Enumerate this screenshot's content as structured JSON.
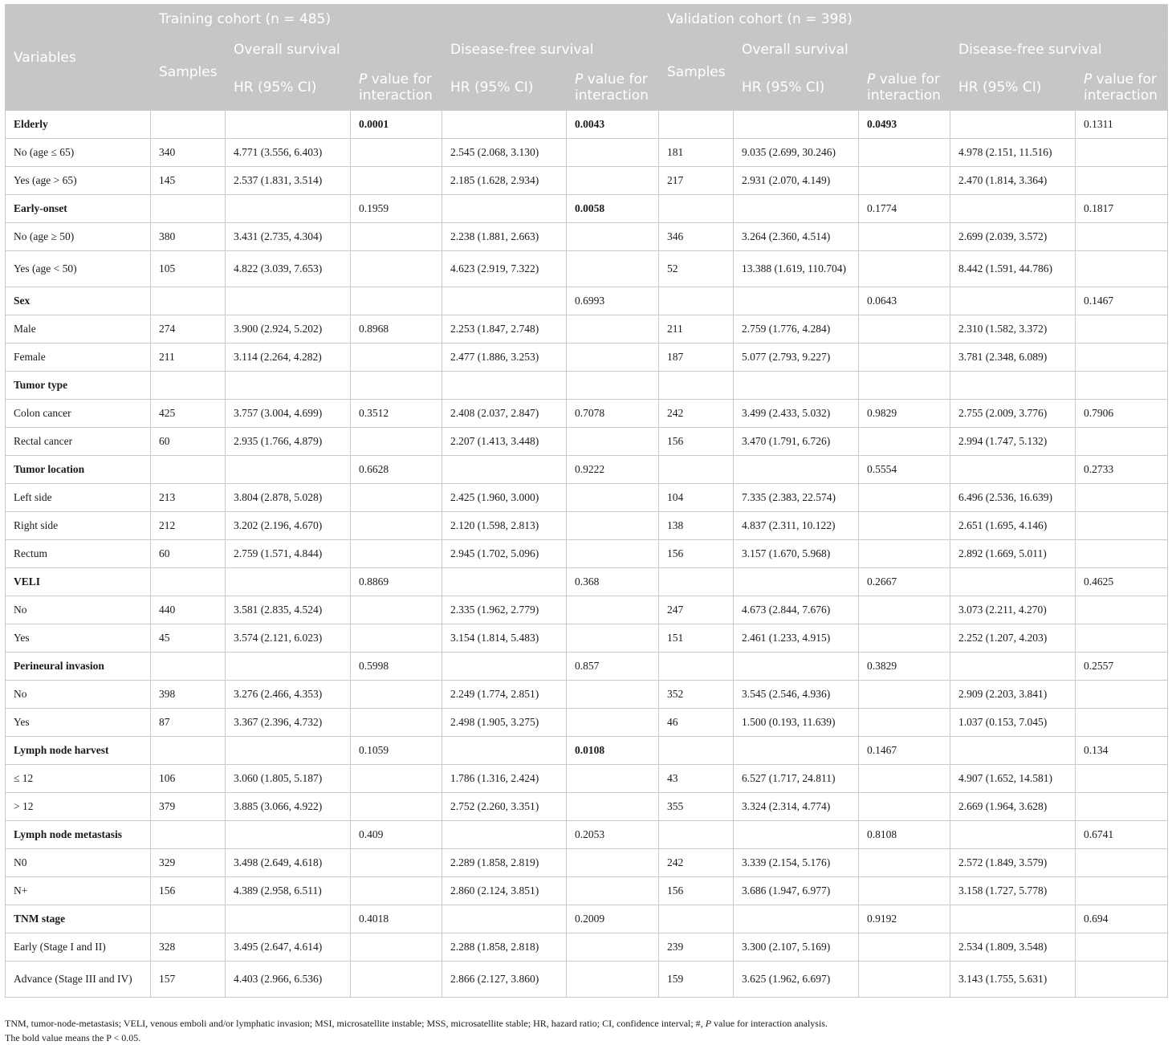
{
  "header": {
    "variables": "Variables",
    "training_cohort": "Training cohort (n = 485)",
    "validation_cohort": "Validation cohort (n = 398)",
    "samples": "Samples",
    "overall_survival": "Overall survival",
    "disease_free_survival": "Disease-free survival",
    "hr": "HR (95% CI)",
    "p_italic": "P",
    "p_rest": " value for interaction"
  },
  "rows": [
    {
      "cells": [
        "Elderly",
        "",
        "",
        "0.0001",
        "",
        "0.0043",
        "",
        "",
        "0.0493",
        "",
        "0.1311"
      ],
      "group": true,
      "bold": [
        3,
        5,
        8
      ]
    },
    {
      "cells": [
        "No (age ≤ 65)",
        "340",
        "4.771 (3.556, 6.403)",
        "",
        "2.545 (2.068, 3.130)",
        "",
        "181",
        "9.035 (2.699, 30.246)",
        "",
        "4.978 (2.151, 11.516)",
        ""
      ]
    },
    {
      "cells": [
        "Yes (age > 65)",
        "145",
        "2.537 (1.831, 3.514)",
        "",
        "2.185 (1.628, 2.934)",
        "",
        "217",
        "2.931 (2.070, 4.149)",
        "",
        "2.470 (1.814, 3.364)",
        ""
      ]
    },
    {
      "cells": [
        "Early-onset",
        "",
        "",
        "0.1959",
        "",
        "0.0058",
        "",
        "",
        "0.1774",
        "",
        "0.1817"
      ],
      "group": true,
      "bold": [
        5
      ]
    },
    {
      "cells": [
        "No (age ≥ 50)",
        "380",
        "3.431 (2.735, 4.304)",
        "",
        "2.238 (1.881, 2.663)",
        "",
        "346",
        "3.264 (2.360, 4.514)",
        "",
        "2.699 (2.039, 3.572)",
        ""
      ]
    },
    {
      "cells": [
        "Yes (age < 50)",
        "105",
        "4.822 (3.039, 7.653)",
        "",
        "4.623 (2.919, 7.322)",
        "",
        "52",
        "13.388 (1.619, 110.704)",
        "",
        "8.442 (1.591, 44.786)",
        ""
      ],
      "tall": true
    },
    {
      "cells": [
        "Sex",
        "",
        "",
        "",
        "",
        "0.6993",
        "",
        "",
        "0.0643",
        "",
        "0.1467"
      ],
      "group": true,
      "bold": []
    },
    {
      "cells": [
        "Male",
        "274",
        "3.900 (2.924, 5.202)",
        "0.8968",
        "2.253 (1.847, 2.748)",
        "",
        "211",
        "2.759 (1.776, 4.284)",
        "",
        "2.310 (1.582, 3.372)",
        ""
      ]
    },
    {
      "cells": [
        "Female",
        "211",
        "3.114 (2.264, 4.282)",
        "",
        "2.477 (1.886, 3.253)",
        "",
        "187",
        "5.077 (2.793, 9.227)",
        "",
        "3.781 (2.348, 6.089)",
        ""
      ]
    },
    {
      "cells": [
        "Tumor type",
        "",
        "",
        "",
        "",
        "",
        "",
        "",
        "",
        "",
        ""
      ],
      "group": true,
      "bold": []
    },
    {
      "cells": [
        "Colon cancer",
        "425",
        "3.757 (3.004, 4.699)",
        "0.3512",
        "2.408 (2.037, 2.847)",
        "0.7078",
        "242",
        "3.499 (2.433, 5.032)",
        "0.9829",
        "2.755 (2.009, 3.776)",
        "0.7906"
      ]
    },
    {
      "cells": [
        "Rectal cancer",
        "60",
        "2.935 (1.766, 4.879)",
        "",
        "2.207 (1.413, 3.448)",
        "",
        "156",
        "3.470 (1.791, 6.726)",
        "",
        "2.994 (1.747, 5.132)",
        ""
      ]
    },
    {
      "cells": [
        "Tumor location",
        "",
        "",
        "0.6628",
        "",
        "0.9222",
        "",
        "",
        "0.5554",
        "",
        "0.2733"
      ],
      "group": true,
      "bold": []
    },
    {
      "cells": [
        "Left side",
        "213",
        "3.804 (2.878, 5.028)",
        "",
        "2.425 (1.960, 3.000)",
        "",
        "104",
        "7.335 (2.383, 22.574)",
        "",
        "6.496 (2.536, 16.639)",
        ""
      ]
    },
    {
      "cells": [
        "Right side",
        "212",
        "3.202 (2.196, 4.670)",
        "",
        "2.120 (1.598, 2.813)",
        "",
        "138",
        "4.837 (2.311, 10.122)",
        "",
        "2.651 (1.695, 4.146)",
        ""
      ]
    },
    {
      "cells": [
        "Rectum",
        "60",
        "2.759 (1.571, 4.844)",
        "",
        "2.945 (1.702, 5.096)",
        "",
        "156",
        "3.157 (1.670, 5.968)",
        "",
        "2.892 (1.669, 5.011)",
        ""
      ]
    },
    {
      "cells": [
        "VELI",
        "",
        "",
        "0.8869",
        "",
        "0.368",
        "",
        "",
        "0.2667",
        "",
        "0.4625"
      ],
      "group": true,
      "bold": []
    },
    {
      "cells": [
        "No",
        "440",
        "3.581 (2.835, 4.524)",
        "",
        "2.335 (1.962, 2.779)",
        "",
        "247",
        "4.673 (2.844, 7.676)",
        "",
        "3.073 (2.211, 4.270)",
        ""
      ]
    },
    {
      "cells": [
        "Yes",
        "45",
        "3.574 (2.121, 6.023)",
        "",
        "3.154 (1.814, 5.483)",
        "",
        "151",
        "2.461 (1.233, 4.915)",
        "",
        "2.252 (1.207, 4.203)",
        ""
      ]
    },
    {
      "cells": [
        "Perineural invasion",
        "",
        "",
        "0.5998",
        "",
        "0.857",
        "",
        "",
        "0.3829",
        "",
        "0.2557"
      ],
      "group": true,
      "bold": []
    },
    {
      "cells": [
        "No",
        "398",
        "3.276 (2.466, 4.353)",
        "",
        "2.249 (1.774, 2.851)",
        "",
        "352",
        "3.545 (2.546, 4.936)",
        "",
        "2.909 (2.203, 3.841)",
        ""
      ]
    },
    {
      "cells": [
        "Yes",
        "87",
        "3.367 (2.396, 4.732)",
        "",
        "2.498 (1.905, 3.275)",
        "",
        "46",
        "1.500 (0.193, 11.639)",
        "",
        "1.037 (0.153, 7.045)",
        ""
      ]
    },
    {
      "cells": [
        "Lymph node harvest",
        "",
        "",
        "0.1059",
        "",
        "0.0108",
        "",
        "",
        "0.1467",
        "",
        "0.134"
      ],
      "group": true,
      "bold": [
        5
      ]
    },
    {
      "cells": [
        "≤ 12",
        "106",
        "3.060 (1.805, 5.187)",
        "",
        "1.786 (1.316, 2.424)",
        "",
        "43",
        "6.527 (1.717, 24.811)",
        "",
        "4.907 (1.652, 14.581)",
        ""
      ]
    },
    {
      "cells": [
        "> 12",
        "379",
        "3.885 (3.066, 4.922)",
        "",
        "2.752 (2.260, 3.351)",
        "",
        "355",
        "3.324 (2.314, 4.774)",
        "",
        "2.669 (1.964, 3.628)",
        ""
      ]
    },
    {
      "cells": [
        "Lymph node metastasis",
        "",
        "",
        "0.409",
        "",
        "0.2053",
        "",
        "",
        "0.8108",
        "",
        "0.6741"
      ],
      "group": true,
      "bold": []
    },
    {
      "cells": [
        "N0",
        "329",
        "3.498 (2.649, 4.618)",
        "",
        "2.289 (1.858, 2.819)",
        "",
        "242",
        "3.339 (2.154, 5.176)",
        "",
        "2.572 (1.849, 3.579)",
        ""
      ]
    },
    {
      "cells": [
        "N+",
        "156",
        "4.389 (2.958, 6.511)",
        "",
        "2.860 (2.124, 3.851)",
        "",
        "156",
        "3.686 (1.947, 6.977)",
        "",
        "3.158 (1.727, 5.778)",
        ""
      ]
    },
    {
      "cells": [
        "TNM stage",
        "",
        "",
        "0.4018",
        "",
        "0.2009",
        "",
        "",
        "0.9192",
        "",
        "0.694"
      ],
      "group": true,
      "bold": []
    },
    {
      "cells": [
        "Early (Stage I and II)",
        "328",
        "3.495 (2.647, 4.614)",
        "",
        "2.288 (1.858, 2.818)",
        "",
        "239",
        "3.300 (2.107, 5.169)",
        "",
        "2.534 (1.809, 3.548)",
        ""
      ]
    },
    {
      "cells": [
        "Advance (Stage III and IV)",
        "157",
        "4.403 (2.966, 6.536)",
        "",
        "2.866 (2.127, 3.860)",
        "",
        "159",
        "3.625 (1.962, 6.697)",
        "",
        "3.143 (1.755, 5.631)",
        ""
      ],
      "tall": true
    }
  ],
  "footnote": {
    "line1_a": "TNM, tumor-node-metastasis; VELI, venous emboli and/or lymphatic invasion; MSI, microsatellite instable; MSS, microsatellite stable; HR, hazard ratio; CI, confidence interval; #, ",
    "line1_p": "P",
    "line1_b": " value for interaction analysis.",
    "line2": "The bold value means the P < 0.05."
  }
}
